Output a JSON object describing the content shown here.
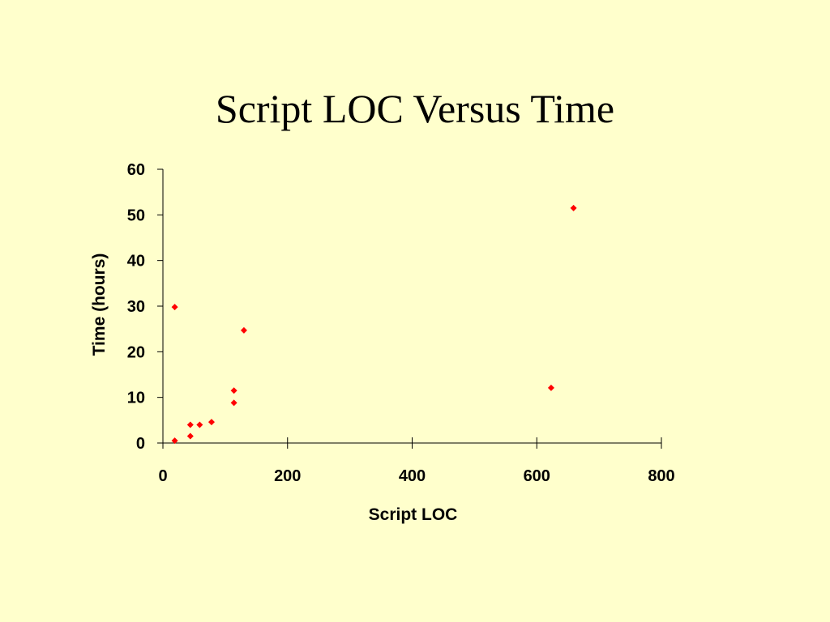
{
  "slide": {
    "title": "Script LOC Versus Time"
  },
  "colors": {
    "background": "#ffffcc",
    "marker": "#ff0000",
    "axis": "#000000"
  },
  "chart_data": {
    "type": "scatter",
    "title": "",
    "xlabel": "Script LOC",
    "ylabel": "Time (hours)",
    "xlim": [
      0,
      800
    ],
    "ylim": [
      0,
      60
    ],
    "x_ticks": [
      0,
      200,
      400,
      600,
      800
    ],
    "y_ticks": [
      0,
      10,
      20,
      30,
      40,
      50,
      60
    ],
    "grid": false,
    "legend": "none",
    "marker": "diamond",
    "series": [
      {
        "points": [
          {
            "x": 19,
            "y": 0.5
          },
          {
            "x": 19,
            "y": 29.8
          },
          {
            "x": 44,
            "y": 1.5
          },
          {
            "x": 44,
            "y": 4
          },
          {
            "x": 59,
            "y": 4
          },
          {
            "x": 78,
            "y": 4.6
          },
          {
            "x": 114,
            "y": 8.8
          },
          {
            "x": 114,
            "y": 11.5
          },
          {
            "x": 130,
            "y": 24.7
          },
          {
            "x": 623,
            "y": 12.1
          },
          {
            "x": 659,
            "y": 51.5
          }
        ]
      }
    ]
  }
}
